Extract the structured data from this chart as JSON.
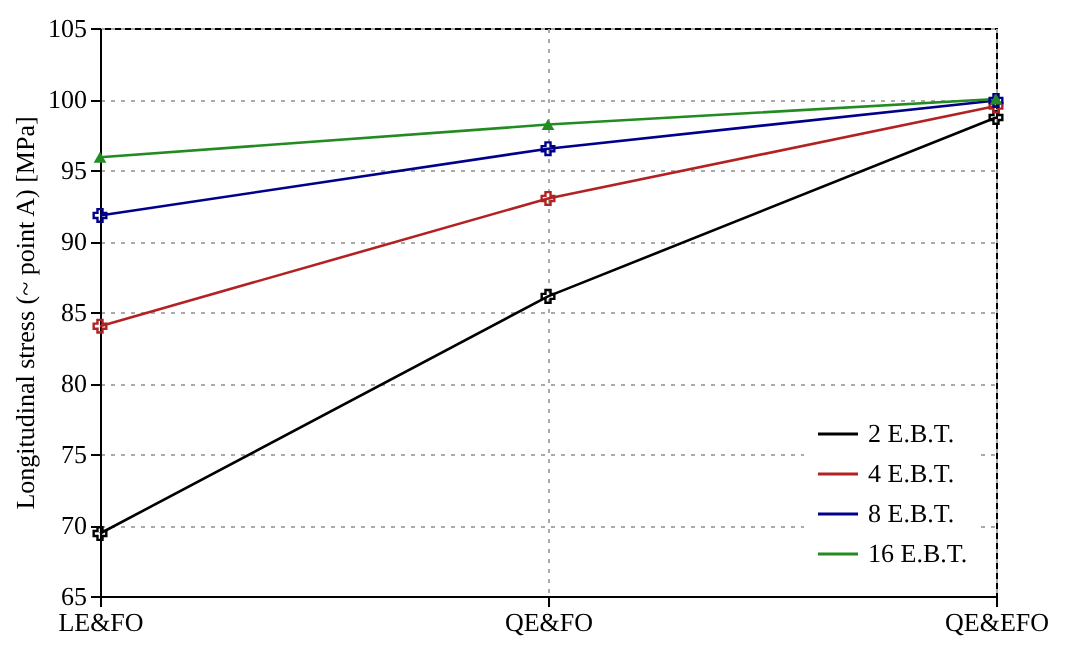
{
  "chart_data": {
    "type": "line",
    "ylabel": "Longitudinal stress (~ point A) [MPa]",
    "categories": [
      "LE&FO",
      "QE&FO",
      "QE&EFO"
    ],
    "series": [
      {
        "name": "2 E.B.T.",
        "color": "#000000",
        "marker": "cross",
        "values": [
          69.4,
          86.1,
          98.7
        ]
      },
      {
        "name": "4 E.B.T.",
        "color": "#b22222",
        "marker": "cross",
        "values": [
          84.0,
          93.0,
          99.5
        ]
      },
      {
        "name": "8 E.B.T.",
        "color": "#00008b",
        "marker": "cross",
        "values": [
          91.8,
          96.5,
          99.9
        ]
      },
      {
        "name": "16 E.B.T.",
        "color": "#228b22",
        "marker": "triangle",
        "values": [
          95.9,
          98.2,
          100.0
        ]
      }
    ],
    "ylim": [
      65,
      105
    ],
    "yticks": [
      65,
      70,
      75,
      80,
      85,
      90,
      95,
      100,
      105
    ],
    "grid": true,
    "legend": "bottom right",
    "line_style": "solid"
  }
}
